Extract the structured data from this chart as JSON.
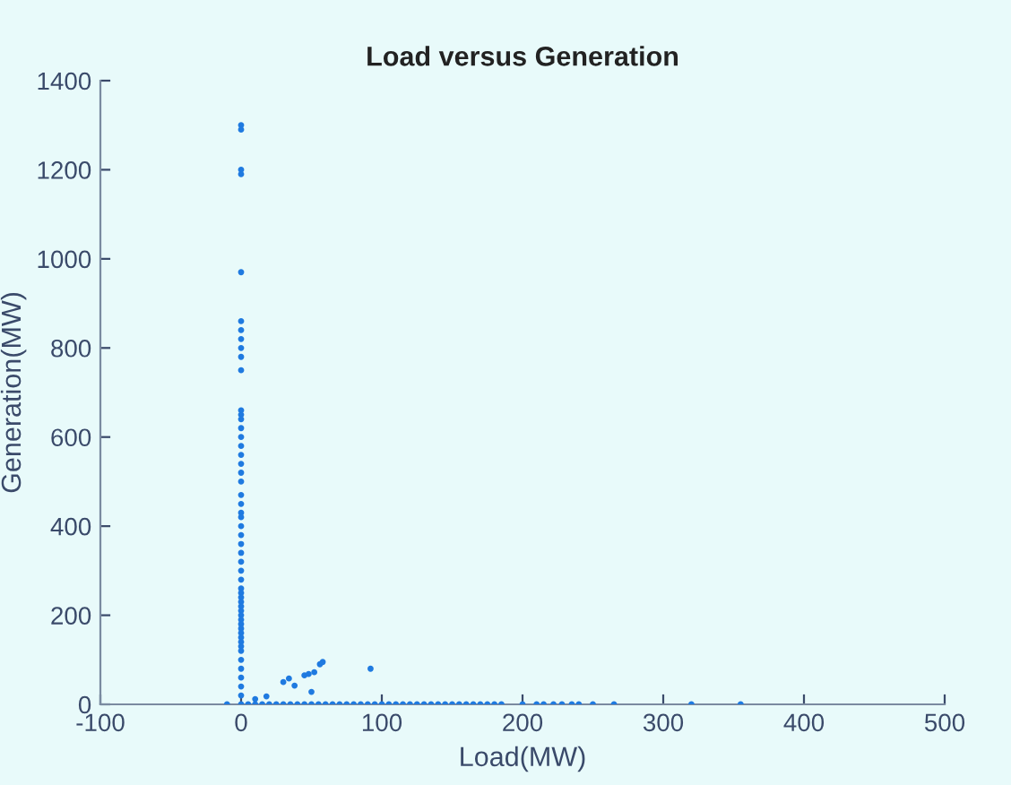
{
  "chart_data": {
    "type": "scatter",
    "title": "Load versus Generation",
    "xlabel": "Load(MW)",
    "ylabel": "Generation(MW)",
    "x": [
      0,
      0,
      0,
      0,
      0,
      0,
      0,
      0,
      0,
      0,
      0,
      0,
      0,
      0,
      0,
      0,
      0,
      0,
      0,
      0,
      0,
      0,
      0,
      0,
      0,
      0,
      0,
      0,
      0,
      0,
      0,
      0,
      0,
      0,
      0,
      0,
      0,
      0,
      0,
      0,
      0,
      0,
      0,
      0,
      0,
      0,
      0,
      0,
      0,
      0,
      0,
      0,
      0,
      -10,
      5,
      10,
      15,
      20,
      25,
      30,
      35,
      40,
      45,
      50,
      55,
      60,
      65,
      70,
      75,
      80,
      85,
      90,
      95,
      100,
      105,
      110,
      115,
      120,
      125,
      130,
      135,
      140,
      145,
      150,
      155,
      160,
      165,
      170,
      175,
      180,
      185,
      200,
      210,
      215,
      222,
      228,
      235,
      240,
      250,
      265,
      320,
      355,
      10,
      18,
      30,
      34,
      38,
      45,
      48,
      50,
      52,
      56,
      58,
      92
    ],
    "values": [
      1300,
      1290,
      1200,
      1190,
      970,
      860,
      840,
      820,
      800,
      780,
      750,
      660,
      650,
      640,
      620,
      600,
      580,
      560,
      540,
      520,
      500,
      470,
      450,
      430,
      420,
      400,
      380,
      360,
      340,
      320,
      300,
      280,
      260,
      250,
      240,
      230,
      220,
      210,
      200,
      190,
      180,
      170,
      160,
      150,
      140,
      130,
      120,
      100,
      80,
      60,
      40,
      20,
      0,
      0,
      0,
      0,
      0,
      0,
      0,
      0,
      0,
      0,
      0,
      0,
      0,
      0,
      0,
      0,
      0,
      0,
      0,
      0,
      0,
      0,
      0,
      0,
      0,
      0,
      0,
      0,
      0,
      0,
      0,
      0,
      0,
      0,
      0,
      0,
      0,
      0,
      0,
      0,
      0,
      0,
      0,
      0,
      0,
      0,
      0,
      0,
      0,
      0,
      12,
      18,
      50,
      58,
      42,
      65,
      68,
      28,
      72,
      90,
      95,
      80
    ],
    "color": "#1f7ae0",
    "marker": "circle",
    "xlim": [
      -100,
      500
    ],
    "ylim": [
      0,
      1400
    ],
    "xticks": [
      -100,
      0,
      100,
      200,
      300,
      400,
      500
    ],
    "yticks": [
      0,
      200,
      400,
      600,
      800,
      1000,
      1200,
      1400
    ],
    "grid": false
  }
}
